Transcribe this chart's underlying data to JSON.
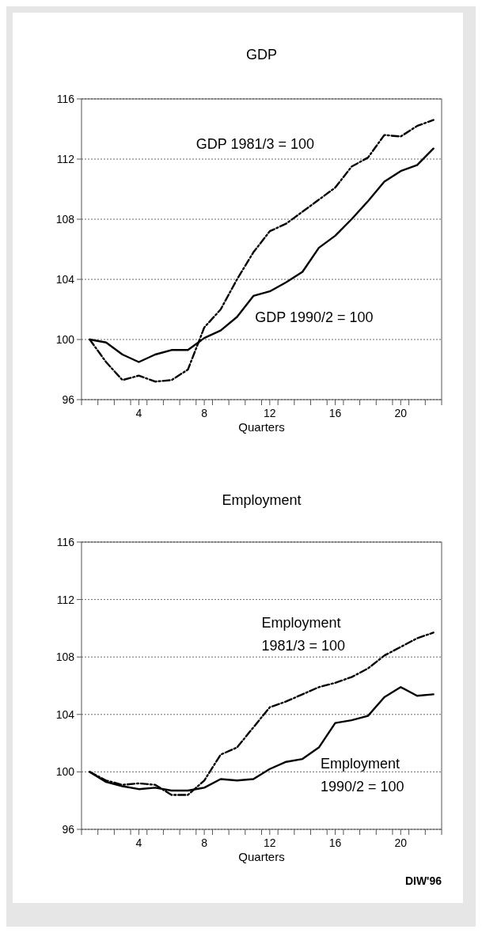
{
  "chart_data": [
    {
      "type": "line",
      "title": "GDP",
      "xlabel": "Quarters",
      "xlim": [
        0.5,
        22.5
      ],
      "ylim": [
        96,
        116
      ],
      "yticks": [
        96,
        100,
        104,
        108,
        112,
        116
      ],
      "xticks": [
        {
          "value": 0.5,
          "label": null
        },
        {
          "value": 1.5,
          "label": null
        },
        {
          "value": 2.5,
          "label": null
        },
        {
          "value": 3.5,
          "label": null
        },
        4,
        {
          "value": 4.5,
          "label": null
        },
        {
          "value": 5.5,
          "label": null
        },
        {
          "value": 6.5,
          "label": null
        },
        {
          "value": 7.5,
          "label": null
        },
        8,
        {
          "value": 8.5,
          "label": null
        },
        {
          "value": 9.5,
          "label": null
        },
        {
          "value": 10.5,
          "label": null
        },
        {
          "value": 11.5,
          "label": null
        },
        12,
        {
          "value": 12.5,
          "label": null
        },
        {
          "value": 13.5,
          "label": null
        },
        {
          "value": 14.5,
          "label": null
        },
        {
          "value": 15.5,
          "label": null
        },
        16,
        {
          "value": 16.5,
          "label": null
        },
        {
          "value": 17.5,
          "label": null
        },
        {
          "value": 18.5,
          "label": null
        },
        {
          "value": 19.5,
          "label": null
        },
        20,
        {
          "value": 20.5,
          "label": null
        },
        {
          "value": 21.5,
          "label": null
        },
        {
          "value": 22.5,
          "label": null
        }
      ],
      "x": [
        1,
        2,
        3,
        4,
        5,
        6,
        7,
        8,
        9,
        10,
        11,
        12,
        13,
        14,
        15,
        16,
        17,
        18,
        19,
        20,
        21,
        22
      ],
      "grid": "y",
      "marker": "none",
      "series": [
        {
          "name": "GDP 1981/3 = 100",
          "color": "#000000",
          "line_style": "dashed",
          "values": [
            100,
            98.5,
            97.3,
            97.6,
            97.2,
            97.3,
            98.0,
            100.8,
            102.0,
            104.0,
            105.8,
            107.2,
            107.7,
            108.5,
            109.3,
            110.1,
            111.5,
            112.1,
            113.6,
            113.5,
            114.2,
            114.6
          ]
        },
        {
          "name": "GDP 1990/2 = 100",
          "color": "#000000",
          "line_style": "solid",
          "values": [
            100,
            99.8,
            99.0,
            98.5,
            99.0,
            99.3,
            99.3,
            100.1,
            100.6,
            101.5,
            102.9,
            103.2,
            103.8,
            104.5,
            106.1,
            106.9,
            108.0,
            109.2,
            110.5,
            111.2,
            111.6,
            112.7
          ]
        }
      ]
    },
    {
      "type": "line",
      "title": "Employment",
      "xlabel": "Quarters",
      "xlim": [
        0.5,
        22.5
      ],
      "ylim": [
        96,
        116
      ],
      "yticks": [
        96,
        100,
        104,
        108,
        112,
        116
      ],
      "xticks": [
        {
          "value": 0.5,
          "label": null
        },
        {
          "value": 1.5,
          "label": null
        },
        {
          "value": 2.5,
          "label": null
        },
        {
          "value": 3.5,
          "label": null
        },
        4,
        {
          "value": 4.5,
          "label": null
        },
        {
          "value": 5.5,
          "label": null
        },
        {
          "value": 6.5,
          "label": null
        },
        {
          "value": 7.5,
          "label": null
        },
        8,
        {
          "value": 8.5,
          "label": null
        },
        {
          "value": 9.5,
          "label": null
        },
        {
          "value": 10.5,
          "label": null
        },
        {
          "value": 11.5,
          "label": null
        },
        12,
        {
          "value": 12.5,
          "label": null
        },
        {
          "value": 13.5,
          "label": null
        },
        {
          "value": 14.5,
          "label": null
        },
        {
          "value": 15.5,
          "label": null
        },
        16,
        {
          "value": 16.5,
          "label": null
        },
        {
          "value": 17.5,
          "label": null
        },
        {
          "value": 18.5,
          "label": null
        },
        {
          "value": 19.5,
          "label": null
        },
        20,
        {
          "value": 20.5,
          "label": null
        },
        {
          "value": 21.5,
          "label": null
        },
        {
          "value": 22.5,
          "label": null
        }
      ],
      "x": [
        1,
        2,
        3,
        4,
        5,
        6,
        7,
        8,
        9,
        10,
        11,
        12,
        13,
        14,
        15,
        16,
        17,
        18,
        19,
        20,
        21,
        22
      ],
      "grid": "y",
      "marker": "none",
      "annotations": [
        "DIW'96"
      ],
      "series": [
        {
          "name": "Employment 1981/3 = 100",
          "color": "#000000",
          "line_style": "dashed",
          "values": [
            100,
            99.4,
            99.1,
            99.2,
            99.1,
            98.4,
            98.4,
            99.4,
            101.2,
            101.7,
            103.1,
            104.5,
            104.9,
            105.4,
            105.9,
            106.2,
            106.6,
            107.2,
            108.1,
            108.7,
            109.3,
            109.7
          ]
        },
        {
          "name": "Employment 1990/2 = 100",
          "color": "#000000",
          "line_style": "solid",
          "values": [
            100,
            99.3,
            99.0,
            98.8,
            98.9,
            98.7,
            98.7,
            98.9,
            99.5,
            99.4,
            99.5,
            100.2,
            100.7,
            100.9,
            101.7,
            103.4,
            103.6,
            103.9,
            105.2,
            105.9,
            105.3,
            105.4
          ]
        }
      ]
    }
  ]
}
